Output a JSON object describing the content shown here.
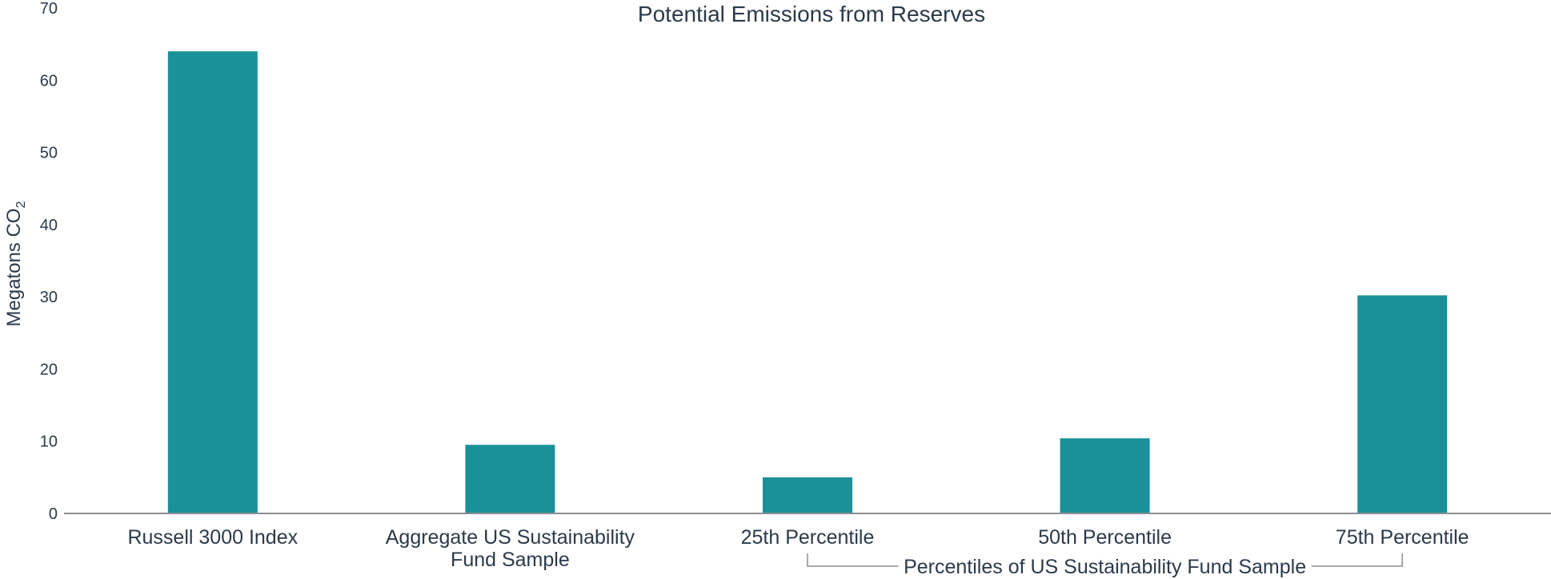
{
  "chart_data": {
    "type": "bar",
    "title": "Potential Emissions from Reserves",
    "ylabel": "Megatons CO",
    "ylabel_subscript": "2",
    "ylim": [
      0,
      70
    ],
    "yticks": [
      0,
      10,
      20,
      30,
      40,
      50,
      60,
      70
    ],
    "categories": [
      [
        "Russell 3000 Index"
      ],
      [
        "Aggregate US Sustainability",
        "Fund Sample"
      ],
      [
        "25th Percentile"
      ],
      [
        "50th Percentile"
      ],
      [
        "75th Percentile"
      ]
    ],
    "values": [
      64,
      9.5,
      5,
      10.4,
      30.2
    ],
    "group_label": "Percentiles of US Sustainability Fund Sample",
    "group_span": [
      2,
      4
    ],
    "bar_color": "#1a9198",
    "grid": false,
    "legend": "none"
  }
}
